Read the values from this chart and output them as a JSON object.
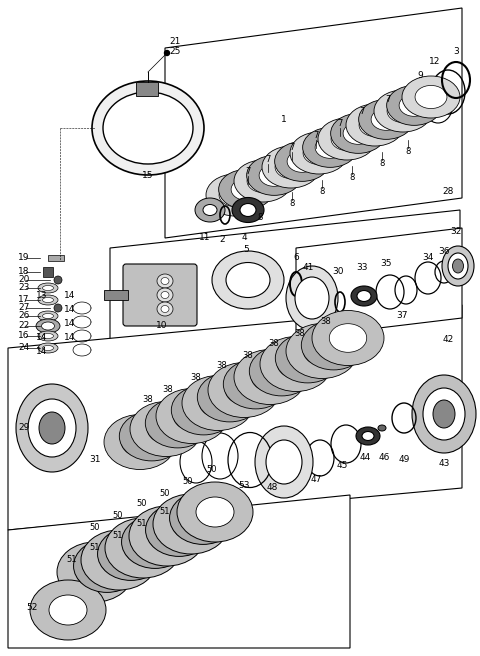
{
  "bg_color": "#ffffff",
  "fig_width": 4.8,
  "fig_height": 6.56,
  "dpi": 100
}
